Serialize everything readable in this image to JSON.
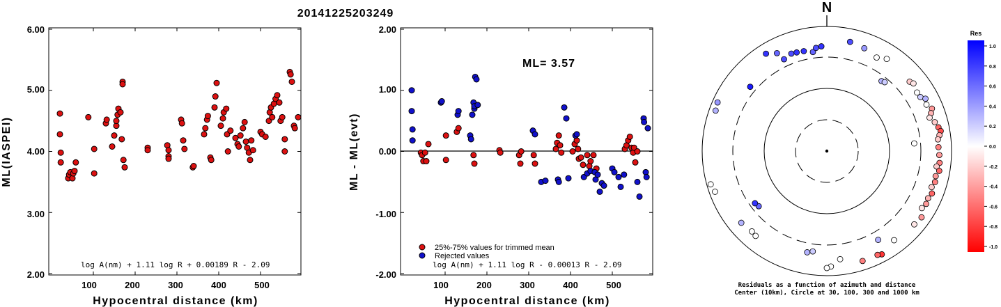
{
  "page_title": "20141225203249",
  "chart_data": [
    {
      "type": "scatter",
      "ylabel": "ML(IASPEI)",
      "xlabel": "Hypocentral distance (km)",
      "xlim": [
        0,
        590
      ],
      "ylim": [
        2.0,
        6.0
      ],
      "xticks": [
        "100",
        "200",
        "300",
        "400",
        "500"
      ],
      "yticks": [
        "2.00",
        "3.00",
        "4.00",
        "5.00",
        "6.00"
      ],
      "formula": "log A(nm) + 1.11 log R + 0.00189 R - 2.09",
      "point_color": "#dd1111",
      "points": [
        [
          20,
          4.62
        ],
        [
          20,
          4.28
        ],
        [
          22,
          3.98
        ],
        [
          22,
          3.82
        ],
        [
          40,
          3.56
        ],
        [
          42,
          3.62
        ],
        [
          45,
          3.66
        ],
        [
          50,
          3.56
        ],
        [
          52,
          3.64
        ],
        [
          55,
          3.68
        ],
        [
          58,
          3.82
        ],
        [
          88,
          4.56
        ],
        [
          102,
          4.04
        ],
        [
          102,
          3.64
        ],
        [
          130,
          4.46
        ],
        [
          132,
          4.52
        ],
        [
          145,
          4.08
        ],
        [
          150,
          4.26
        ],
        [
          155,
          4.42
        ],
        [
          155,
          4.5
        ],
        [
          158,
          4.6
        ],
        [
          160,
          4.7
        ],
        [
          165,
          4.64
        ],
        [
          168,
          4.2
        ],
        [
          170,
          5.14
        ],
        [
          170,
          5.1
        ],
        [
          172,
          3.86
        ],
        [
          175,
          3.74
        ],
        [
          230,
          4.06
        ],
        [
          230,
          4.02
        ],
        [
          277,
          4.1
        ],
        [
          280,
          4.02
        ],
        [
          280,
          3.92
        ],
        [
          280,
          3.88
        ],
        [
          310,
          4.52
        ],
        [
          312,
          4.46
        ],
        [
          315,
          4.18
        ],
        [
          318,
          4.04
        ],
        [
          338,
          3.74
        ],
        [
          340,
          3.76
        ],
        [
          365,
          4.28
        ],
        [
          368,
          4.38
        ],
        [
          372,
          4.52
        ],
        [
          374,
          4.58
        ],
        [
          380,
          3.9
        ],
        [
          382,
          3.86
        ],
        [
          390,
          4.72
        ],
        [
          392,
          4.9
        ],
        [
          395,
          5.12
        ],
        [
          405,
          4.42
        ],
        [
          410,
          4.54
        ],
        [
          412,
          4.64
        ],
        [
          418,
          4.7
        ],
        [
          420,
          4.28
        ],
        [
          422,
          4.0
        ],
        [
          428,
          4.34
        ],
        [
          440,
          4.22
        ],
        [
          445,
          4.12
        ],
        [
          448,
          4.08
        ],
        [
          452,
          4.26
        ],
        [
          458,
          4.38
        ],
        [
          462,
          4.48
        ],
        [
          465,
          4.16
        ],
        [
          468,
          4.06
        ],
        [
          472,
          3.98
        ],
        [
          475,
          3.86
        ],
        [
          478,
          4.18
        ],
        [
          482,
          4.02
        ],
        [
          500,
          4.32
        ],
        [
          504,
          4.28
        ],
        [
          512,
          4.24
        ],
        [
          520,
          4.5
        ],
        [
          522,
          4.64
        ],
        [
          525,
          4.72
        ],
        [
          528,
          4.56
        ],
        [
          532,
          4.78
        ],
        [
          536,
          4.86
        ],
        [
          540,
          4.92
        ],
        [
          545,
          4.8
        ],
        [
          548,
          4.5
        ],
        [
          552,
          4.56
        ],
        [
          558,
          4.2
        ],
        [
          558,
          4.0
        ],
        [
          570,
          5.3
        ],
        [
          572,
          5.26
        ],
        [
          575,
          5.14
        ],
        [
          580,
          4.42
        ],
        [
          582,
          4.38
        ],
        [
          590,
          4.56
        ]
      ]
    },
    {
      "type": "scatter",
      "ylabel": "ML - ML(evt)",
      "xlabel": "Hypocentral distance (km)",
      "xlim": [
        0,
        590
      ],
      "ylim": [
        -2.0,
        2.0
      ],
      "xticks": [
        "100",
        "200",
        "300",
        "400",
        "500"
      ],
      "yticks": [
        "-2.00",
        "-1.00",
        "0.00",
        "1.00",
        "2.00"
      ],
      "annotation": "ML= 3.57",
      "formula": "log A(nm) + 1.11 log R - 0.00013 R - 2.09",
      "legend": [
        {
          "label": "25%-75% values for trimmed mean",
          "color": "#dd1111"
        },
        {
          "label": "Rejected values",
          "color": "#1111cc"
        }
      ],
      "series": [
        {
          "name": "25%-75% values for trimmed mean",
          "color": "#dd1111",
          "points": [
            [
              42,
              -0.02
            ],
            [
              45,
              -0.06
            ],
            [
              48,
              -0.16
            ],
            [
              52,
              -0.02
            ],
            [
              55,
              -0.16
            ],
            [
              60,
              0.12
            ],
            [
              102,
              0.26
            ],
            [
              102,
              -0.14
            ],
            [
              128,
              0.32
            ],
            [
              132,
              0.38
            ],
            [
              168,
              -0.06
            ],
            [
              170,
              -0.2
            ],
            [
              230,
              0.02
            ],
            [
              232,
              -0.02
            ],
            [
              277,
              -0.06
            ],
            [
              280,
              -0.2
            ],
            [
              282,
              0.0
            ],
            [
              312,
              -0.06
            ],
            [
              315,
              -0.2
            ],
            [
              365,
              0.04
            ],
            [
              368,
              0.14
            ],
            [
              372,
              0.26
            ],
            [
              375,
              0.1
            ],
            [
              378,
              -0.02
            ],
            [
              405,
              0.0
            ],
            [
              410,
              0.12
            ],
            [
              415,
              0.18
            ],
            [
              418,
              0.04
            ],
            [
              420,
              -0.12
            ],
            [
              425,
              -0.1
            ],
            [
              430,
              -0.22
            ],
            [
              440,
              -0.06
            ],
            [
              445,
              -0.24
            ],
            [
              448,
              -0.16
            ],
            [
              455,
              -0.06
            ],
            [
              462,
              -0.28
            ],
            [
              530,
              0.04
            ],
            [
              534,
              0.1
            ],
            [
              538,
              0.18
            ],
            [
              542,
              0.24
            ],
            [
              546,
              0.06
            ],
            [
              550,
              -0.02
            ],
            [
              552,
              0.06
            ],
            [
              555,
              -0.18
            ],
            [
              560,
              0.0
            ]
          ]
        },
        {
          "name": "Rejected values",
          "color": "#1111cc",
          "points": [
            [
              20,
              1.0
            ],
            [
              20,
              0.66
            ],
            [
              22,
              0.36
            ],
            [
              22,
              0.18
            ],
            [
              90,
              0.8
            ],
            [
              92,
              0.82
            ],
            [
              130,
              0.6
            ],
            [
              132,
              0.66
            ],
            [
              160,
              0.26
            ],
            [
              162,
              0.2
            ],
            [
              165,
              0.6
            ],
            [
              168,
              0.8
            ],
            [
              170,
              0.7
            ],
            [
              170,
              0.74
            ],
            [
              172,
              1.22
            ],
            [
              175,
              1.18
            ],
            [
              178,
              0.76
            ],
            [
              310,
              0.34
            ],
            [
              315,
              0.28
            ],
            [
              330,
              -0.5
            ],
            [
              340,
              -0.48
            ],
            [
              370,
              -0.46
            ],
            [
              372,
              -0.5
            ],
            [
              385,
              0.72
            ],
            [
              390,
              0.54
            ],
            [
              395,
              -0.44
            ],
            [
              412,
              0.26
            ],
            [
              415,
              0.28
            ],
            [
              432,
              -0.42
            ],
            [
              440,
              -0.36
            ],
            [
              448,
              -0.32
            ],
            [
              458,
              -0.34
            ],
            [
              460,
              -0.46
            ],
            [
              465,
              -0.38
            ],
            [
              470,
              -0.66
            ],
            [
              475,
              -0.52
            ],
            [
              480,
              -0.56
            ],
            [
              500,
              -0.28
            ],
            [
              505,
              -0.34
            ],
            [
              515,
              -0.42
            ],
            [
              520,
              -0.58
            ],
            [
              528,
              -0.38
            ],
            [
              560,
              -0.5
            ],
            [
              565,
              -0.74
            ],
            [
              575,
              0.54
            ],
            [
              576,
              0.48
            ],
            [
              580,
              -0.34
            ],
            [
              582,
              -0.42
            ],
            [
              585,
              0.38
            ]
          ]
        }
      ]
    },
    {
      "type": "polar-scatter",
      "north_label": "N",
      "caption_line1": "Residuals as a function of azimuth and distance",
      "caption_line2": "Center (10km), Circle at 30, 100, 300 and 1000 km",
      "colorbar_title": "Res",
      "colorbar_ticks": [
        "1.0",
        "0.8",
        "0.6",
        "0.4",
        "0.2",
        "0.0",
        "-0.2",
        "-0.4",
        "-0.6",
        "-0.8",
        "-1.0"
      ],
      "colorbar_range": [
        -1.0,
        1.0
      ],
      "colors": {
        "positive": "#0000ff",
        "negative": "#ff0000",
        "neutral": "#ffffff"
      },
      "points": [
        {
          "az": 12,
          "dist": 600,
          "res": 0.7
        },
        {
          "az": 20,
          "dist": 550,
          "res": 0.4
        },
        {
          "az": 28,
          "dist": 480,
          "res": 0.0
        },
        {
          "az": 33,
          "dist": 560,
          "res": 0.0
        },
        {
          "az": 38,
          "dist": 250,
          "res": 0.3
        },
        {
          "az": 40,
          "dist": 260,
          "res": 0.2
        },
        {
          "az": 50,
          "dist": 520,
          "res": -0.2
        },
        {
          "az": 52,
          "dist": 560,
          "res": -0.1
        },
        {
          "az": 57,
          "dist": 510,
          "res": 0.0
        },
        {
          "az": 60,
          "dist": 520,
          "res": 0.2
        },
        {
          "az": 62,
          "dist": 600,
          "res": 0.3
        },
        {
          "az": 65,
          "dist": 560,
          "res": 0.0
        },
        {
          "az": 68,
          "dist": 640,
          "res": -0.4
        },
        {
          "az": 70,
          "dist": 580,
          "res": -0.3
        },
        {
          "az": 72,
          "dist": 520,
          "res": -0.1
        },
        {
          "az": 75,
          "dist": 600,
          "res": -0.2
        },
        {
          "az": 78,
          "dist": 660,
          "res": -0.6
        },
        {
          "az": 80,
          "dist": 700,
          "res": -0.7
        },
        {
          "az": 82,
          "dist": 650,
          "res": -0.3
        },
        {
          "az": 84,
          "dist": 600,
          "res": -0.2
        },
        {
          "az": 85,
          "dist": 240,
          "res": 0.0
        },
        {
          "az": 88,
          "dist": 600,
          "res": -0.5
        },
        {
          "az": 92,
          "dist": 620,
          "res": -0.4
        },
        {
          "az": 96,
          "dist": 640,
          "res": -0.5
        },
        {
          "az": 98,
          "dist": 580,
          "res": -0.2
        },
        {
          "az": 100,
          "dist": 660,
          "res": -0.6
        },
        {
          "az": 103,
          "dist": 600,
          "res": -0.4
        },
        {
          "az": 106,
          "dist": 620,
          "res": -0.5
        },
        {
          "az": 109,
          "dist": 580,
          "res": -0.2
        },
        {
          "az": 112,
          "dist": 640,
          "res": -0.6
        },
        {
          "az": 115,
          "dist": 600,
          "res": -0.3
        },
        {
          "az": 118,
          "dist": 620,
          "res": -0.4
        },
        {
          "az": 121,
          "dist": 580,
          "res": -0.1
        },
        {
          "az": 125,
          "dist": 700,
          "res": -0.4
        },
        {
          "az": 130,
          "dist": 660,
          "res": -0.1
        },
        {
          "az": 143,
          "dist": 600,
          "res": 0.0
        },
        {
          "az": 150,
          "dist": 420,
          "res": 0.3
        },
        {
          "az": 152,
          "dist": 740,
          "res": -0.8
        },
        {
          "az": 154,
          "dist": 700,
          "res": -0.6
        },
        {
          "az": 162,
          "dist": 700,
          "res": -0.5
        },
        {
          "az": 173,
          "dist": 540,
          "res": 0.0
        },
        {
          "az": 178,
          "dist": 700,
          "res": 0.0
        },
        {
          "az": 180,
          "dist": 740,
          "res": 0.0
        },
        {
          "az": 188,
          "dist": 400,
          "res": 0.2
        },
        {
          "az": 191,
          "dist": 430,
          "res": 0.3
        },
        {
          "az": 220,
          "dist": 580,
          "res": 0.0
        },
        {
          "az": 223,
          "dist": 560,
          "res": 0.0
        },
        {
          "az": 230,
          "dist": 600,
          "res": 0.3
        },
        {
          "az": 231,
          "dist": 240,
          "res": 0.6
        },
        {
          "az": 234,
          "dist": 250,
          "res": 0.8
        },
        {
          "az": 250,
          "dist": 800,
          "res": 0.0
        },
        {
          "az": 254,
          "dist": 860,
          "res": 0.0
        },
        {
          "az": 290,
          "dist": 780,
          "res": 0.3
        },
        {
          "az": 294,
          "dist": 820,
          "res": 0.4
        },
        {
          "az": 310,
          "dist": 380,
          "res": 0.9
        },
        {
          "az": 328,
          "dist": 680,
          "res": 0.8
        },
        {
          "az": 333,
          "dist": 560,
          "res": 0.6
        },
        {
          "az": 335,
          "dist": 400,
          "res": 0.7
        },
        {
          "az": 340,
          "dist": 440,
          "res": 0.7
        },
        {
          "az": 343,
          "dist": 430,
          "res": 0.8
        },
        {
          "az": 347,
          "dist": 420,
          "res": 0.8
        },
        {
          "az": 352,
          "dist": 380,
          "res": 0.6
        },
        {
          "az": 354,
          "dist": 440,
          "res": 0.7
        },
        {
          "az": 357,
          "dist": 460,
          "res": 0.8
        }
      ]
    }
  ]
}
